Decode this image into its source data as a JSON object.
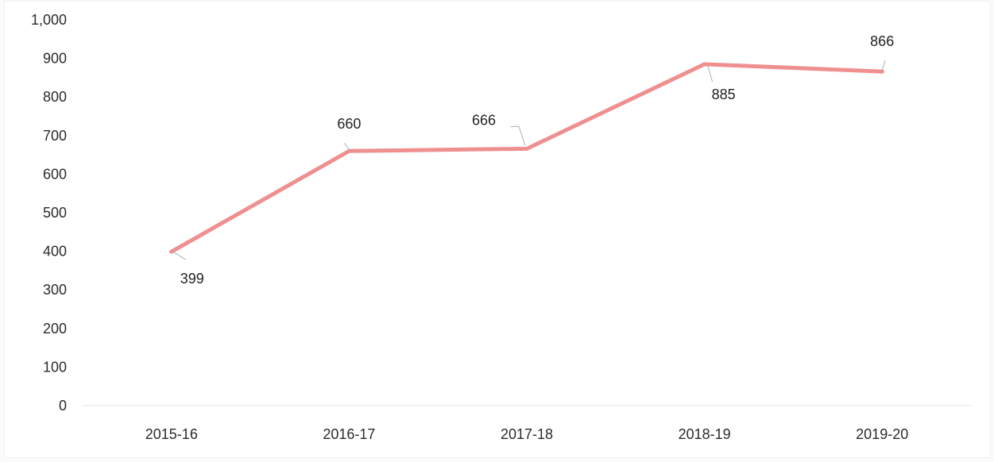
{
  "chart_data": {
    "type": "line",
    "categories": [
      "2015-16",
      "2016-17",
      "2017-18",
      "2018-19",
      "2019-20"
    ],
    "series": [
      {
        "values": [
          399,
          660,
          666,
          885,
          866
        ],
        "data_labels": [
          "399",
          "660",
          "666",
          "885",
          "866"
        ],
        "color": "#ef8f8f"
      }
    ],
    "ylim": [
      0,
      1000
    ],
    "yticks": [
      0,
      100,
      200,
      300,
      400,
      500,
      600,
      700,
      800,
      900,
      1000
    ],
    "ytick_labels": [
      "0",
      "100",
      "200",
      "300",
      "400",
      "500",
      "600",
      "700",
      "800",
      "900",
      "1,000"
    ],
    "grid": false,
    "legend": "none",
    "title": "",
    "xlabel": "",
    "ylabel": ""
  }
}
